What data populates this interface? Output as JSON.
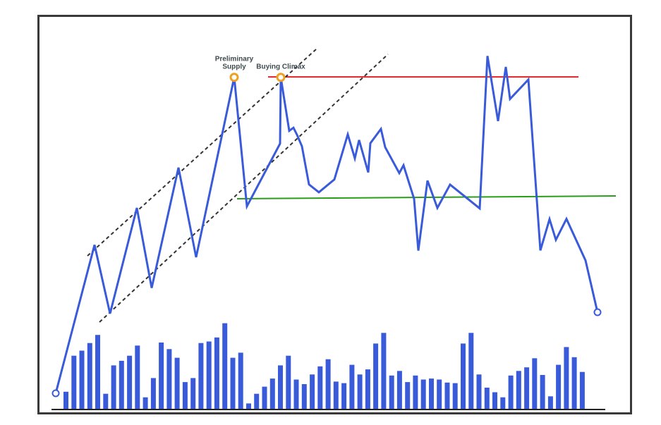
{
  "chart_data": {
    "type": "line",
    "price": [
      0,
      44.78,
      24.07,
      55.95,
      31.81,
      68.12,
      41.06,
      95.38,
      56.42,
      75.39,
      95.38,
      79.24,
      80.16,
      78.05,
      74.58,
      63.04,
      60.69,
      64.55,
      78.14,
      70.92,
      76.44,
      66.69,
      75.49,
      79.78,
      74.3,
      66.47,
      68.83,
      58.69,
      43.07,
      64.21,
      55.95,
      63.01,
      55.8,
      101.84,
      82.18,
      98.54,
      88.86,
      94.7,
      43.12,
      52.56,
      46.31,
      52.63,
      40.11,
      24.47
    ],
    "volume": [
      3.5,
      10.6,
      11.6,
      13.1,
      14.7,
      3.1,
      8.7,
      9.6,
      10.6,
      12.6,
      2.4,
      6.2,
      13.2,
      11.9,
      10.2,
      5.4,
      6.2,
      13.1,
      13.4,
      14.2,
      17.0,
      10.2,
      11.2,
      1.2,
      3.1,
      4.5,
      6.1,
      8.7,
      10.6,
      5.9,
      5.0,
      6.9,
      8.5,
      9.9,
      5.5,
      5.2,
      8.8,
      6.9,
      7.9,
      13.0,
      15.1,
      6.7,
      7.6,
      5.4,
      6.7,
      5.9,
      6.1,
      5.9,
      5.3,
      5.2,
      13.0,
      15.1,
      6.9,
      4.3,
      3.4,
      2.4,
      6.7,
      7.6,
      8.3,
      10.1,
      6.8,
      2.6,
      8.8,
      12.3,
      10.3,
      7.4
    ],
    "resistance_level": 95.5,
    "support_level": 63.7,
    "annotations": [
      {
        "point_index": 7,
        "lines": [
          "Preliminary",
          "Supply"
        ]
      },
      {
        "point_index": 10,
        "lines": [
          "Buying Climax"
        ]
      }
    ],
    "colors": {
      "price_line": "#3a5bd9",
      "volume_bars": "#3a5bd9",
      "resistance": "#e32222",
      "support": "#2a9d1a",
      "channel": "#333333",
      "highlight_marker": "#f0a020",
      "frame": "#3a3a3a",
      "annotation_text": "#3f4a4f"
    },
    "grid": false,
    "legend": "none"
  }
}
